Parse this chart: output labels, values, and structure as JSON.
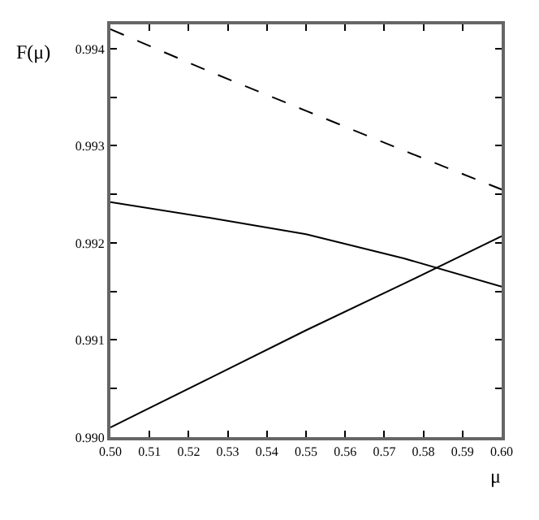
{
  "chart_data": {
    "type": "line",
    "xlabel": "μ",
    "ylabel": "F(μ)",
    "x": [
      0.5,
      0.525,
      0.55,
      0.575,
      0.6
    ],
    "series": [
      {
        "color": "#000000",
        "line_style": "dashed",
        "values": [
          0.9942,
          0.99377,
          0.99336,
          0.99295,
          0.99255
        ]
      },
      {
        "color": "#000000",
        "line_style": "solid",
        "values": [
          0.99242,
          0.99226,
          0.99209,
          0.99184,
          0.99155
        ]
      },
      {
        "color": "#000000",
        "line_style": "solid",
        "values": [
          0.9901,
          0.9906,
          0.9911,
          0.99158,
          0.99207
        ]
      }
    ],
    "xlim": [
      0.5,
      0.6
    ],
    "xticks": [
      {
        "value": 0.5,
        "label": "0.50"
      },
      0.51,
      0.52,
      0.53,
      0.54,
      0.55,
      0.56,
      0.57,
      0.58,
      0.59,
      {
        "value": 0.6,
        "label": "0.60"
      }
    ],
    "ylim": [
      0.99,
      0.99425
    ],
    "yticks": [
      {
        "value": 0.99,
        "label": "0.990"
      },
      {
        "value": 0.9905,
        "label": null
      },
      0.991,
      {
        "value": 0.9915,
        "label": null
      },
      0.992,
      {
        "value": 0.9925,
        "label": null
      },
      0.993,
      {
        "value": 0.9935,
        "label": null
      },
      0.994
    ],
    "marker": "none"
  }
}
